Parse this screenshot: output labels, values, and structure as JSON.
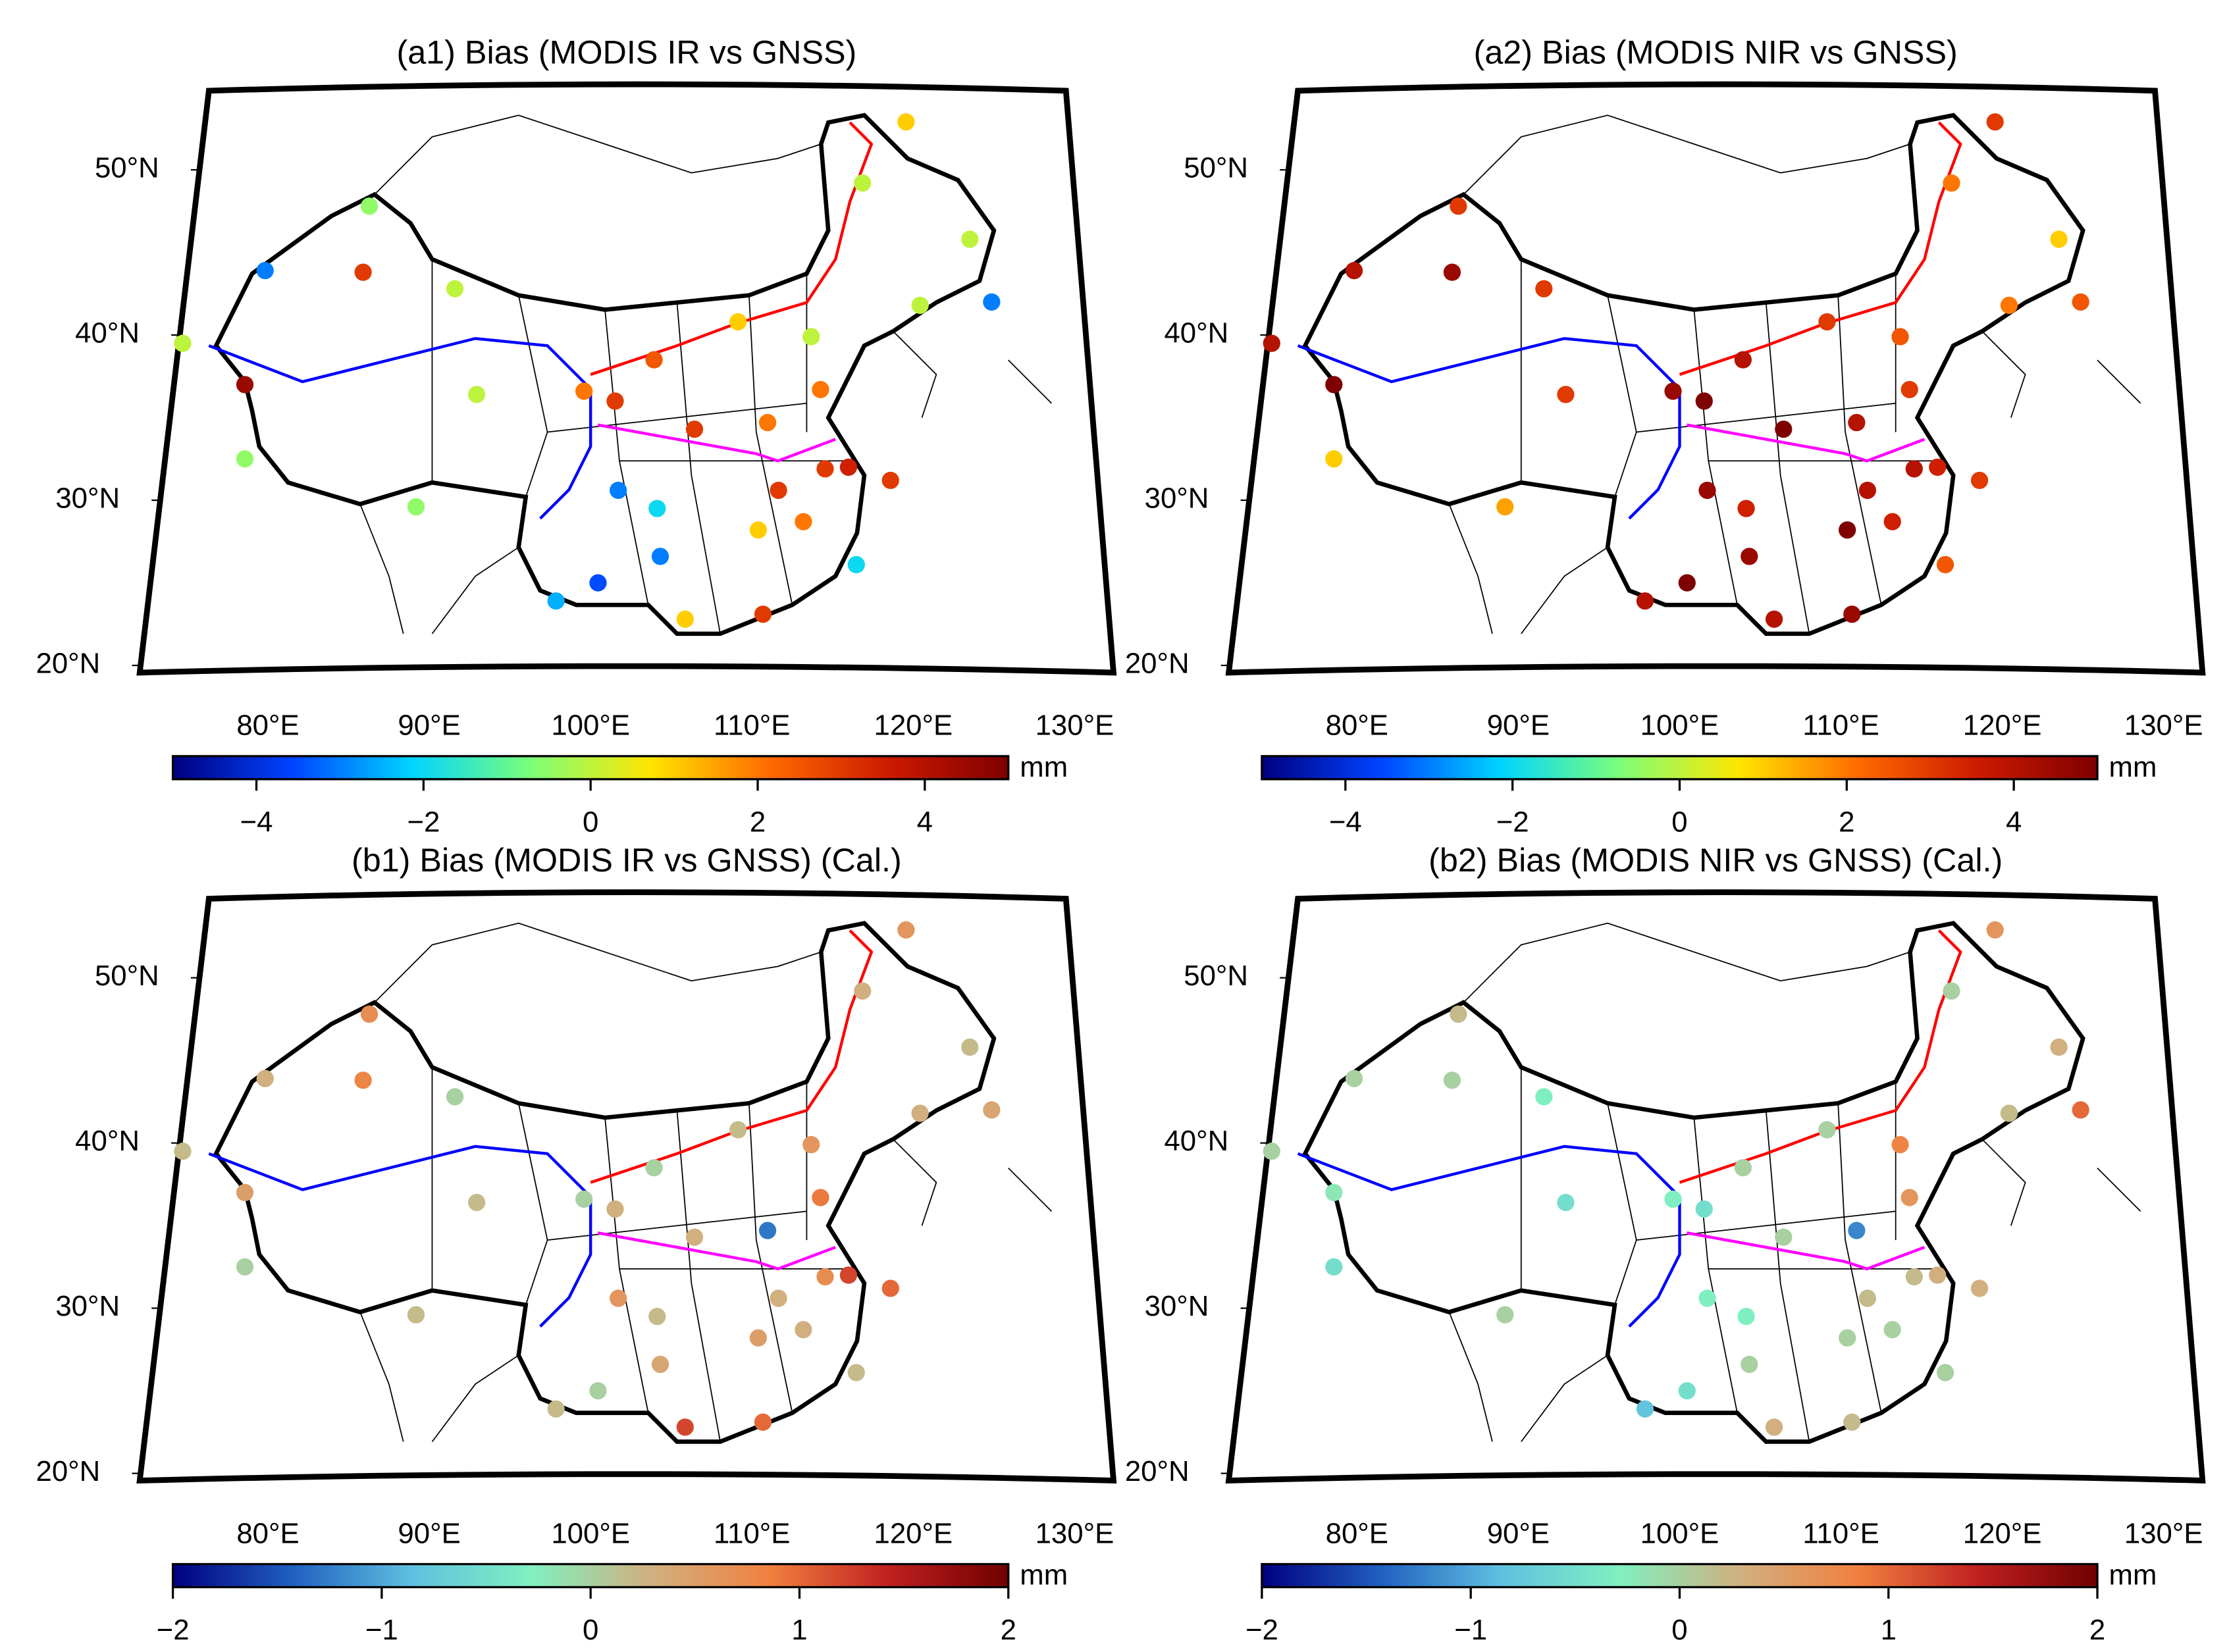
{
  "stations": {
    "lon": [
      76,
      87.6,
      93.5,
      80,
      81.3,
      88,
      91,
      80,
      94.9,
      101.8,
      103.8,
      106.3,
      111.7,
      116.4,
      126.6,
      122.5,
      119.7,
      123.4,
      128,
      113.6,
      108.9,
      104,
      102.7,
      100,
      106.7,
      108.3,
      113.3,
      113,
      114.3,
      121.5,
      119.3,
      118.8,
      117,
      117.3,
      115.9,
      106.5
    ],
    "lat": [
      39.5,
      43.8,
      42.8,
      37,
      43.9,
      47.8,
      29.6,
      32.5,
      36.4,
      36.6,
      36,
      38.5,
      40.8,
      39.9,
      45.8,
      52.9,
      49.2,
      41.8,
      42,
      34.7,
      34.3,
      30.6,
      25,
      23.9,
      26.6,
      22.8,
      23.1,
      28.2,
      30.6,
      31.2,
      26.1,
      32,
      36.7,
      31.9,
      28.7,
      29.5
    ]
  },
  "panels": [
    {
      "title": "(a1) Bias (MODIS IR vs GNSS)",
      "unit": "mm",
      "clim": [
        -5,
        5
      ],
      "cticks": [
        {
          "value": -4,
          "label": "−4"
        },
        {
          "value": -2,
          "label": "−2"
        },
        0,
        2,
        4
      ],
      "colormap": [
        "#00007f",
        "#0044ff",
        "#00d4ff",
        "#7cff79",
        "#ffe600",
        "#ff6a00",
        "#cc1a00",
        "#7f0000"
      ],
      "values": [
        0,
        3,
        0,
        4.5,
        -3,
        -0.5,
        -0.5,
        -0.5,
        0,
        2,
        3,
        2.5,
        1,
        0,
        0,
        1,
        0,
        0,
        -3,
        2,
        3,
        -3,
        -3.5,
        -2.5,
        -3,
        1,
        3,
        1,
        3,
        3,
        -2,
        3.5,
        2,
        3,
        2,
        -2
      ]
    },
    {
      "title": "(a2) Bias (MODIS NIR vs GNSS)",
      "unit": "mm",
      "clim": [
        -5,
        5
      ],
      "cticks": [
        {
          "value": -4,
          "label": "−4"
        },
        {
          "value": -2,
          "label": "−2"
        },
        0,
        2,
        4
      ],
      "colormap": [
        "#00007f",
        "#0044ff",
        "#00d4ff",
        "#7cff79",
        "#ffe600",
        "#ff6a00",
        "#cc1a00",
        "#7f0000"
      ],
      "values": [
        4,
        4.5,
        3,
        5,
        4,
        3,
        1.5,
        1,
        3,
        4.5,
        5,
        4,
        3,
        2.5,
        1,
        3,
        2,
        2,
        2.5,
        4,
        5,
        4.5,
        5,
        4,
        4.5,
        4,
        4.5,
        5,
        4,
        3,
        2.5,
        3.5,
        3,
        4,
        3.5,
        3.5
      ]
    },
    {
      "title": "(b1) Bias (MODIS IR vs GNSS) (Cal.)",
      "unit": "mm",
      "clim": [
        -2,
        2
      ],
      "cticks": [
        {
          "value": -2,
          "label": "−2"
        },
        {
          "value": -1,
          "label": "−1"
        },
        0,
        1,
        2
      ],
      "colormap": [
        "#000080",
        "#2060c0",
        "#60c0e0",
        "#80f0c0",
        "#d0b080",
        "#f08040",
        "#c02020",
        "#700000"
      ],
      "values": [
        0.2,
        0.8,
        0,
        0.5,
        0.3,
        0.7,
        0.2,
        0,
        0.2,
        0,
        0.3,
        0,
        0.2,
        0.6,
        0.2,
        0.6,
        0.3,
        0.3,
        0.4,
        -1.3,
        0.3,
        0.6,
        0,
        0.2,
        0.4,
        1.2,
        1,
        0.5,
        0.3,
        1,
        0.2,
        1.2,
        0.9,
        0.7,
        0.3,
        0.2
      ]
    },
    {
      "title": "(b2) Bias (MODIS NIR vs GNSS) (Cal.)",
      "unit": "mm",
      "clim": [
        -2,
        2
      ],
      "cticks": [
        {
          "value": -2,
          "label": "−2"
        },
        {
          "value": -1,
          "label": "−1"
        },
        0,
        1,
        2
      ],
      "colormap": [
        "#000080",
        "#2060c0",
        "#60c0e0",
        "#80f0c0",
        "#d0b080",
        "#f08040",
        "#c02020",
        "#700000"
      ],
      "values": [
        0,
        0,
        -0.3,
        -0.2,
        0,
        0.2,
        0,
        -0.5,
        -0.5,
        -0.3,
        -0.5,
        0,
        0,
        0.8,
        0.3,
        0.6,
        0,
        0.2,
        1,
        -1.2,
        0,
        -0.3,
        -0.5,
        -0.8,
        0,
        0.3,
        0.2,
        0,
        0.2,
        0.3,
        0,
        0.3,
        0.6,
        0.2,
        0,
        -0.3
      ]
    }
  ],
  "latticks": [
    {
      "value": 20,
      "label": "20°N"
    },
    {
      "value": 30,
      "label": "30°N"
    },
    {
      "value": 40,
      "label": "40°N"
    },
    {
      "value": 50,
      "label": "50°N"
    }
  ],
  "lonticks": [
    {
      "value": 80,
      "label": "80°E"
    },
    {
      "value": 90,
      "label": "90°E"
    },
    {
      "value": 100,
      "label": "100°E"
    },
    {
      "value": 110,
      "label": "110°E"
    },
    {
      "value": 120,
      "label": "120°E"
    },
    {
      "value": 130,
      "label": "130°E"
    }
  ]
}
